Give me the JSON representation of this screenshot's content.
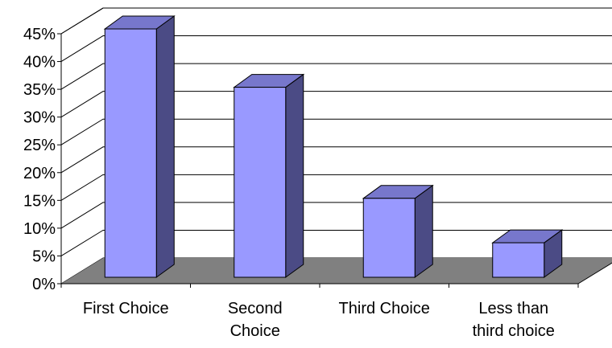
{
  "chart_data": {
    "type": "bar",
    "style": "3d-column",
    "categories": [
      [
        "First Choice"
      ],
      [
        "Second",
        "Choice"
      ],
      [
        "Third Choice"
      ],
      [
        "Less than",
        "third choice"
      ]
    ],
    "values": [
      45,
      34.5,
      14.5,
      6.5
    ],
    "ylim": [
      0,
      45
    ],
    "yticks": [
      "0%",
      "5%",
      "10%",
      "15%",
      "20%",
      "25%",
      "30%",
      "35%",
      "40%",
      "45%"
    ],
    "grid": true,
    "legend": "none",
    "colors": {
      "bar_front": "#9999FF",
      "bar_side": "#4B4B85",
      "bar_top": "#7777CC",
      "floor": "#808080",
      "grid": "#000000"
    }
  }
}
